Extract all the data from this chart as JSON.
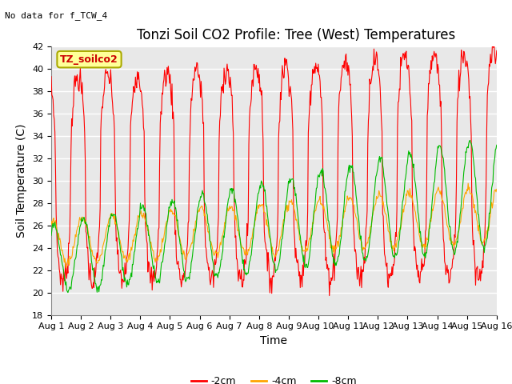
{
  "title": "Tonzi Soil CO2 Profile: Tree (West) Temperatures",
  "no_data_label": "No data for f_TCW_4",
  "box_label": "TZ_soilco2",
  "ylabel": "Soil Temperature (C)",
  "xlabel": "Time",
  "ylim": [
    18,
    42
  ],
  "xlim_days": 15,
  "xtick_labels": [
    "Aug 1",
    "Aug 2",
    "Aug 3",
    "Aug 4",
    "Aug 5",
    "Aug 6",
    "Aug 7",
    "Aug 8",
    "Aug 9",
    "Aug 10",
    "Aug 11",
    "Aug 12",
    "Aug 13",
    "Aug 14",
    "Aug 15",
    "Aug 16"
  ],
  "legend_labels": [
    "-2cm",
    "-4cm",
    "-8cm"
  ],
  "line_colors": [
    "#ff0000",
    "#ffa500",
    "#00bb00"
  ],
  "background_color": "#e8e8e8",
  "fig_background": "#ffffff",
  "title_fontsize": 12,
  "label_fontsize": 10,
  "tick_fontsize": 8,
  "days": 15
}
